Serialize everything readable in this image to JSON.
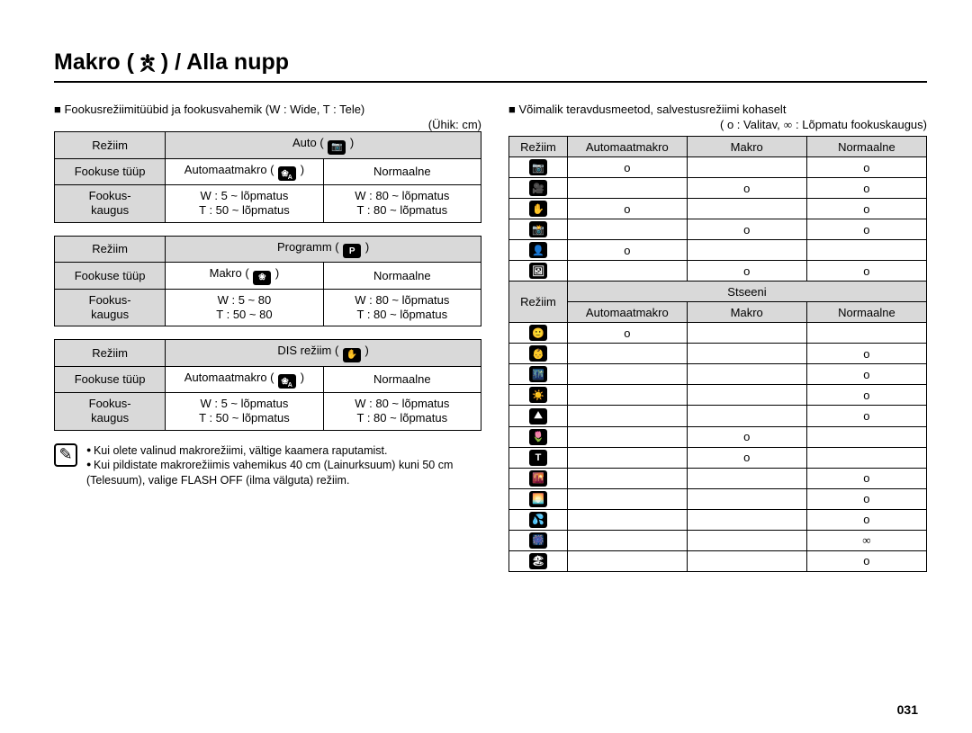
{
  "heading": {
    "pre": "Makro (",
    "post": ") / Alla nupp"
  },
  "left_intro": "Fookusrežiimitüübid ja fookusvahemik (W : Wide, T : Tele)",
  "unit_label": "(Ühik: cm)",
  "tables": [
    {
      "mode_label": "Režiim",
      "mode_value": "Auto",
      "mode_icon": "camera",
      "ftype_label": "Fookuse tüüp",
      "ftype_left": "Automaatmakro",
      "ftype_left_icon": "flower-a",
      "ftype_right": "Normaalne",
      "range_label1": "Fookus-",
      "range_label2": "kaugus",
      "left1": "W : 5 ~ lõpmatus",
      "left2": "T : 50 ~ lõpmatus",
      "right1": "W : 80 ~ lõpmatus",
      "right2": "T : 80 ~ lõpmatus"
    },
    {
      "mode_label": "Režiim",
      "mode_value": "Programm",
      "mode_icon": "camera-p",
      "ftype_label": "Fookuse tüüp",
      "ftype_left": "Makro",
      "ftype_left_icon": "flower",
      "ftype_right": "Normaalne",
      "range_label1": "Fookus-",
      "range_label2": "kaugus",
      "left1": "W : 5 ~ 80",
      "left2": "T : 50 ~ 80",
      "right1": "W : 80 ~ lõpmatus",
      "right2": "T : 80 ~ lõpmatus"
    },
    {
      "mode_label": "Režiim",
      "mode_value": "DIS režiim",
      "mode_icon": "hand",
      "ftype_label": "Fookuse tüüp",
      "ftype_left": "Automaatmakro",
      "ftype_left_icon": "flower-a",
      "ftype_right": "Normaalne",
      "range_label1": "Fookus-",
      "range_label2": "kaugus",
      "left1": "W : 5 ~ lõpmatus",
      "left2": "T : 50 ~ lõpmatus",
      "right1": "W : 80 ~ lõpmatus",
      "right2": "T : 80 ~ lõpmatus"
    }
  ],
  "notes": [
    "Kui olete valinud makrorežiimi, vältige kaamera raputamist.",
    "Kui pildistate makrorežiimis vahemikus 40 cm (Lainurksuum) kuni 50 cm (Telesuum), valige FLASH OFF (ilma välguta) režiim."
  ],
  "right_intro": "Võimalik teravdusmeetod, salvestusrežiimi kohaselt",
  "legend_pre": "( o : Valitav,",
  "legend_post": ": Lõpmatu fookuskaugus)",
  "matrix_header": {
    "c0": "Režiim",
    "c1": "Automaatmakro",
    "c2": "Makro",
    "c3": "Normaalne"
  },
  "main_rows": [
    {
      "icon": "📷",
      "a": "o",
      "m": "",
      "n": "o"
    },
    {
      "icon": "🎥",
      "a": "",
      "m": "o",
      "n": "o"
    },
    {
      "icon": "✋",
      "a": "o",
      "m": "",
      "n": "o"
    },
    {
      "icon": "📸",
      "a": "",
      "m": "o",
      "n": "o"
    },
    {
      "icon": "👤",
      "a": "o",
      "m": "",
      "n": ""
    },
    {
      "icon": "🖼",
      "a": "",
      "m": "o",
      "n": "o"
    }
  ],
  "sub_header": {
    "label": "Režiim",
    "span": "Stseeni",
    "c1": "Automaatmakro",
    "c2": "Makro",
    "c3": "Normaalne"
  },
  "scene_rows": [
    {
      "icon": "🙂",
      "a": "o",
      "m": "",
      "n": ""
    },
    {
      "icon": "👶",
      "a": "",
      "m": "",
      "n": "o"
    },
    {
      "icon": "🌃",
      "a": "",
      "m": "",
      "n": "o"
    },
    {
      "icon": "☀️",
      "a": "",
      "m": "",
      "n": "o"
    },
    {
      "icon": "⛰",
      "a": "",
      "m": "",
      "n": "o"
    },
    {
      "icon": "🌷",
      "a": "",
      "m": "o",
      "n": ""
    },
    {
      "icon": "T",
      "a": "",
      "m": "o",
      "n": ""
    },
    {
      "icon": "🌇",
      "a": "",
      "m": "",
      "n": "o"
    },
    {
      "icon": "🌅",
      "a": "",
      "m": "",
      "n": "o"
    },
    {
      "icon": "💦",
      "a": "",
      "m": "",
      "n": "o"
    },
    {
      "icon": "🎆",
      "a": "",
      "m": "",
      "n": "∞"
    },
    {
      "icon": "🏖",
      "a": "",
      "m": "",
      "n": "o"
    }
  ],
  "page_number": "031"
}
